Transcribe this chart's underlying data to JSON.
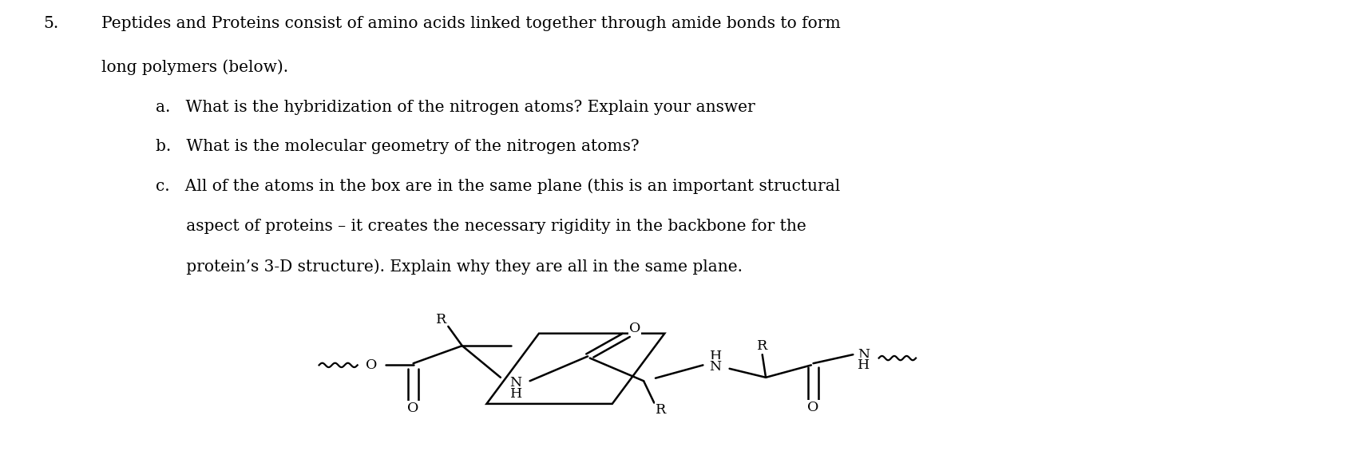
{
  "background_color": "#ffffff",
  "text_color": "#000000",
  "body_fontsize": 14.5,
  "fig_width": 16.92,
  "fig_height": 5.8,
  "q_num": "5.",
  "q_line1": "Peptides and Proteins consist of amino acids linked together through amide bonds to form",
  "q_line2": "long polymers (below).",
  "sub_a": "a.   What is the hybridization of the nitrogen atoms? Explain your answer",
  "sub_b": "b.   What is the molecular geometry of the nitrogen atoms?",
  "sub_c1": "c.   All of the atoms in the box are in the same plane (this is an important structural",
  "sub_c2": "      aspect of proteins – it creates the necessary rigidity in the backbone for the",
  "sub_c3": "      protein’s 3-D structure). Explain why they are all in the same plane."
}
